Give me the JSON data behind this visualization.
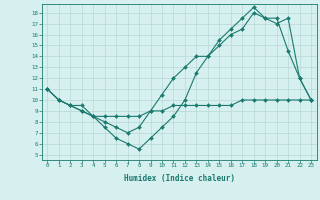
{
  "line1": {
    "x": [
      0,
      1,
      2,
      3,
      4,
      5,
      6,
      7,
      8,
      9,
      10,
      11,
      12,
      13,
      14,
      15,
      16,
      17,
      18,
      19,
      20,
      21,
      22,
      23
    ],
    "y": [
      11,
      10,
      9.5,
      9.5,
      8.5,
      8.5,
      8.5,
      8.5,
      8.5,
      9.0,
      9.0,
      9.5,
      9.5,
      9.5,
      9.5,
      9.5,
      9.5,
      10,
      10,
      10,
      10,
      10,
      10,
      10
    ],
    "color": "#1a7a6e",
    "marker": "D",
    "markersize": 2.0,
    "linewidth": 0.8
  },
  "line2": {
    "x": [
      0,
      1,
      2,
      3,
      4,
      5,
      6,
      7,
      8,
      9,
      10,
      11,
      12,
      13,
      14,
      15,
      16,
      17,
      18,
      19,
      20,
      21,
      22,
      23
    ],
    "y": [
      11,
      10,
      9.5,
      9,
      8.5,
      7.5,
      6.5,
      6.0,
      5.5,
      6.5,
      7.5,
      8.5,
      10,
      12.5,
      14,
      15.5,
      16.5,
      17.5,
      18.5,
      17.5,
      17.5,
      14.5,
      12,
      10
    ],
    "color": "#1a7a6e",
    "marker": "D",
    "markersize": 2.0,
    "linewidth": 0.8
  },
  "line3": {
    "x": [
      0,
      1,
      2,
      3,
      4,
      5,
      6,
      7,
      8,
      9,
      10,
      11,
      12,
      13,
      14,
      15,
      16,
      17,
      18,
      19,
      20,
      21,
      22,
      23
    ],
    "y": [
      11,
      10,
      9.5,
      9,
      8.5,
      8.0,
      7.5,
      7.0,
      7.5,
      9.0,
      10.5,
      12.0,
      13.0,
      14.0,
      14.0,
      15.0,
      16.0,
      16.5,
      18.0,
      17.5,
      17.0,
      17.5,
      12.0,
      10.0
    ],
    "color": "#1a7a6e",
    "marker": "D",
    "markersize": 2.0,
    "linewidth": 0.8
  },
  "xlim": [
    -0.5,
    23.5
  ],
  "ylim": [
    4.5,
    18.8
  ],
  "yticks": [
    5,
    6,
    7,
    8,
    9,
    10,
    11,
    12,
    13,
    14,
    15,
    16,
    17,
    18
  ],
  "xticks": [
    0,
    1,
    2,
    3,
    4,
    5,
    6,
    7,
    8,
    9,
    10,
    11,
    12,
    13,
    14,
    15,
    16,
    17,
    18,
    19,
    20,
    21,
    22,
    23
  ],
  "xlabel": "Humidex (Indice chaleur)",
  "background_color": "#d6efef",
  "grid_color": "#b8d8d8",
  "tick_color": "#1a7a6e",
  "label_color": "#1a7a6e"
}
